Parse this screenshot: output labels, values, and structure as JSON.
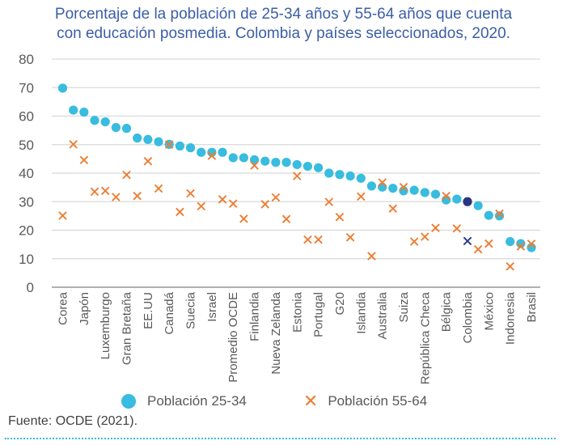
{
  "title_lines": [
    "Porcentaje de la población de 25-34 años y 55-64 años que cuenta",
    "con educación posmedia. Colombia y países seleccionados, 2020."
  ],
  "legend": {
    "series1": "Población 25-34",
    "series2": "Población 55-64"
  },
  "source": "Fuente: OCDE (2021).",
  "colors": {
    "series1": "#38bcdf",
    "series2": "#ee7d31",
    "highlight": "#283580",
    "grid": "#d9d9d9",
    "axis": "#808080"
  },
  "chart_data": {
    "type": "scatter",
    "title": "Porcentaje de la población de 25-34 años y 55-64 años que cuenta con educación posmedia. Colombia y países seleccionados, 2020.",
    "xlabel": "",
    "ylabel": "",
    "ylim": [
      0,
      80
    ],
    "yticks": [
      0,
      10,
      20,
      30,
      40,
      50,
      60,
      70,
      80
    ],
    "grid": true,
    "legend_position": "bottom",
    "highlight_category_index": 38,
    "categories": [
      "Corea",
      "",
      "Japón",
      "",
      "Luxemburgo",
      "",
      "Gran Bretaña",
      "",
      "EE.UU",
      "",
      "Canadá",
      "",
      "Suecia",
      "",
      "Israel",
      "",
      "Promedio OCDE",
      "",
      "Finlandia",
      "",
      "Nueva Zelanda",
      "",
      "Estonia",
      "",
      "Portugal",
      "",
      "G20",
      "",
      "Islandia",
      "",
      "Australia",
      "",
      "Suiza",
      "",
      "República Checa",
      "",
      "Bélgica",
      "",
      "Colombia",
      "",
      "México",
      "",
      "Indonesia",
      "",
      "Brasil"
    ],
    "series": [
      {
        "name": "Población 25-34",
        "marker": "circle",
        "values": [
          69.8,
          62.1,
          61.4,
          58.5,
          58.0,
          56.0,
          55.7,
          52.3,
          51.8,
          51.0,
          50.1,
          49.5,
          48.9,
          47.3,
          47.3,
          47.3,
          45.4,
          45.4,
          44.7,
          44.2,
          43.8,
          43.8,
          43.0,
          42.4,
          41.9,
          40.0,
          39.5,
          39.0,
          38.2,
          35.5,
          35.1,
          34.7,
          33.8,
          34.0,
          33.2,
          32.6,
          30.6,
          30.9,
          30.0,
          28.6,
          25.2,
          25.0,
          16.0,
          15.3,
          13.9
        ]
      },
      {
        "name": "Población 55-64",
        "marker": "x",
        "values": [
          25.1,
          50.1,
          44.6,
          33.5,
          33.8,
          31.6,
          39.4,
          32.0,
          44.2,
          34.6,
          50.0,
          26.4,
          32.9,
          28.4,
          46.1,
          30.8,
          29.3,
          24.0,
          42.7,
          29.1,
          31.5,
          23.9,
          39.0,
          16.7,
          16.7,
          29.9,
          24.6,
          17.5,
          31.8,
          10.9,
          36.7,
          27.6,
          35.1,
          16.0,
          17.7,
          20.8,
          32.0,
          20.6,
          16.2,
          13.3,
          15.3,
          25.8,
          7.3,
          14.3,
          15.2
        ]
      }
    ]
  }
}
